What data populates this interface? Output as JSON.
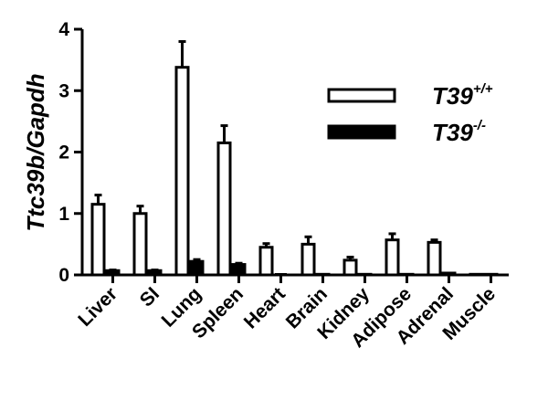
{
  "chart_data": {
    "type": "bar",
    "title": "",
    "ylabel": "Ttc39b/Gapdh",
    "xlabel": "",
    "ylim": [
      0,
      4
    ],
    "yticks": [
      "0",
      "1",
      "2",
      "3",
      "4"
    ],
    "grid": false,
    "legend_position": "top-right",
    "categories": [
      "Liver",
      "SI",
      "Lung",
      "Spleen",
      "Heart",
      "Brain",
      "Kidney",
      "Adipose",
      "Adrenal",
      "Muscle"
    ],
    "series": [
      {
        "name": "T39+/+",
        "label_base": "T39",
        "label_sup": "+/+",
        "style": "open",
        "values": [
          1.15,
          1.0,
          3.38,
          2.15,
          0.45,
          0.5,
          0.24,
          0.57,
          0.53,
          0.01
        ],
        "errors": [
          0.15,
          0.12,
          0.42,
          0.28,
          0.06,
          0.12,
          0.05,
          0.1,
          0.04,
          0.0
        ]
      },
      {
        "name": "T39-/-",
        "label_base": "T39",
        "label_sup": "-/-",
        "style": "filled",
        "values": [
          0.07,
          0.07,
          0.22,
          0.17,
          0.0,
          0.01,
          0.01,
          0.01,
          0.03,
          0.01
        ],
        "errors": [
          0.01,
          0.01,
          0.03,
          0.02,
          0.0,
          0.0,
          0.0,
          0.0,
          0.0,
          0.0
        ]
      }
    ],
    "colors": {
      "open_fill": "#ffffff",
      "stroke": "#000000",
      "filled_fill": "#000000"
    }
  }
}
